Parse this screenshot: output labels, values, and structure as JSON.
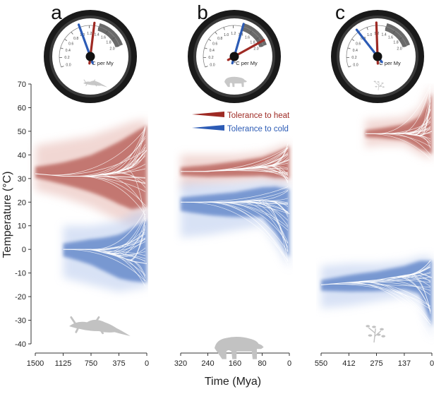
{
  "chart_data": [
    {
      "type": "line",
      "panel_label": "a",
      "title": "",
      "xlabel": "",
      "ylabel": "Temperature (°C)",
      "x_ticks": [
        "1500",
        "1125",
        "750",
        "375",
        "0"
      ],
      "xlim": [
        1500,
        0
      ],
      "ylim": [
        -40,
        70
      ],
      "gauge": {
        "unit": "°C per My",
        "heat_rate": 1.3,
        "cold_rate": 1.0
      },
      "series": [
        {
          "name": "Tolerance to heat",
          "x": [
            1500,
            1125,
            750,
            375,
            200,
            0
          ],
          "y": [
            32,
            31,
            31,
            33,
            35,
            42
          ],
          "y_low": [
            25,
            22,
            18,
            12,
            10,
            12
          ],
          "y_high": [
            44,
            46,
            48,
            52,
            54,
            55
          ]
        },
        {
          "name": "Tolerance to cold",
          "x": [
            1125,
            750,
            375,
            200,
            0
          ],
          "y": [
            0,
            0,
            -3,
            -5,
            -6
          ],
          "y_low": [
            -12,
            -15,
            -18,
            -17,
            -16
          ],
          "y_high": [
            10,
            10,
            12,
            15,
            17
          ]
        }
      ]
    },
    {
      "type": "line",
      "panel_label": "b",
      "title": "",
      "xlabel": "",
      "ylabel": "",
      "x_ticks": [
        "320",
        "240",
        "160",
        "80",
        "0"
      ],
      "xlim": [
        320,
        0
      ],
      "ylim": [
        -40,
        70
      ],
      "gauge": {
        "unit": "°C per My",
        "heat_rate": 1.9,
        "cold_rate": 1.4
      },
      "series": [
        {
          "name": "Tolerance to heat",
          "x": [
            320,
            240,
            160,
            80,
            40,
            0
          ],
          "y": [
            33,
            33,
            34,
            35,
            36,
            38
          ],
          "y_low": [
            26,
            27,
            28,
            29,
            28,
            28
          ],
          "y_high": [
            40,
            40,
            40,
            41,
            43,
            45
          ]
        },
        {
          "name": "Tolerance to cold",
          "x": [
            320,
            240,
            160,
            80,
            40,
            0
          ],
          "y": [
            20,
            20,
            20,
            21,
            20,
            15
          ],
          "y_low": [
            5,
            6,
            8,
            10,
            2,
            -8
          ],
          "y_high": [
            28,
            28,
            28,
            29,
            29,
            28
          ]
        }
      ]
    },
    {
      "type": "line",
      "panel_label": "c",
      "title": "",
      "xlabel": "",
      "ylabel": "",
      "x_ticks": [
        "550",
        "412",
        "275",
        "137",
        "0"
      ],
      "xlim": [
        550,
        0
      ],
      "ylim": [
        -40,
        70
      ],
      "gauge": {
        "unit": "°C per My",
        "heat_rate": 1.2,
        "cold_rate": 0.8
      },
      "series": [
        {
          "name": "Tolerance to heat",
          "x": [
            330,
            275,
            137,
            60,
            0
          ],
          "y": [
            49,
            49,
            49,
            48,
            50
          ],
          "y_low": [
            43,
            44,
            44,
            40,
            38
          ],
          "y_high": [
            55,
            55,
            56,
            60,
            70
          ]
        },
        {
          "name": "Tolerance to cold",
          "x": [
            550,
            412,
            275,
            137,
            60,
            0
          ],
          "y": [
            -15,
            -14,
            -13,
            -11,
            -10,
            -12
          ],
          "y_low": [
            -25,
            -24,
            -22,
            -20,
            -22,
            -38
          ],
          "y_high": [
            -7,
            -6,
            -6,
            -5,
            -3,
            -3
          ]
        }
      ]
    }
  ],
  "axis_text": {
    "ylabel": "Temperature (°C)",
    "xlabel": "Time (Mya)",
    "y_ticks": [
      "70",
      "60",
      "50",
      "40",
      "30",
      "20",
      "10",
      "0",
      "-10",
      "-20",
      "-30",
      "-40"
    ]
  },
  "legend": {
    "heat": "Tolerance to heat",
    "cold": "Tolerance to cold",
    "position": "top-center of panel b"
  },
  "gauge_text": {
    "unit": "°C per My",
    "ticks": [
      "0.0",
      "0.2",
      "0.4",
      "0.6",
      "0.8",
      "1.0",
      "1.2",
      "1.4",
      "1.6",
      "1.8",
      "2.0"
    ]
  },
  "icons": [
    "lizard-icon",
    "bear-icon",
    "plant-icon"
  ],
  "colors": {
    "heat": "#9e2a24",
    "heat_light": "#e6b7b0",
    "cold": "#2c5bb5",
    "cold_light": "#b9cbee",
    "gauge_ring": "#1a1a1a",
    "gauge_band": "#6a6a6a",
    "text": "#222222",
    "silhouette": "#c2c2c2"
  }
}
